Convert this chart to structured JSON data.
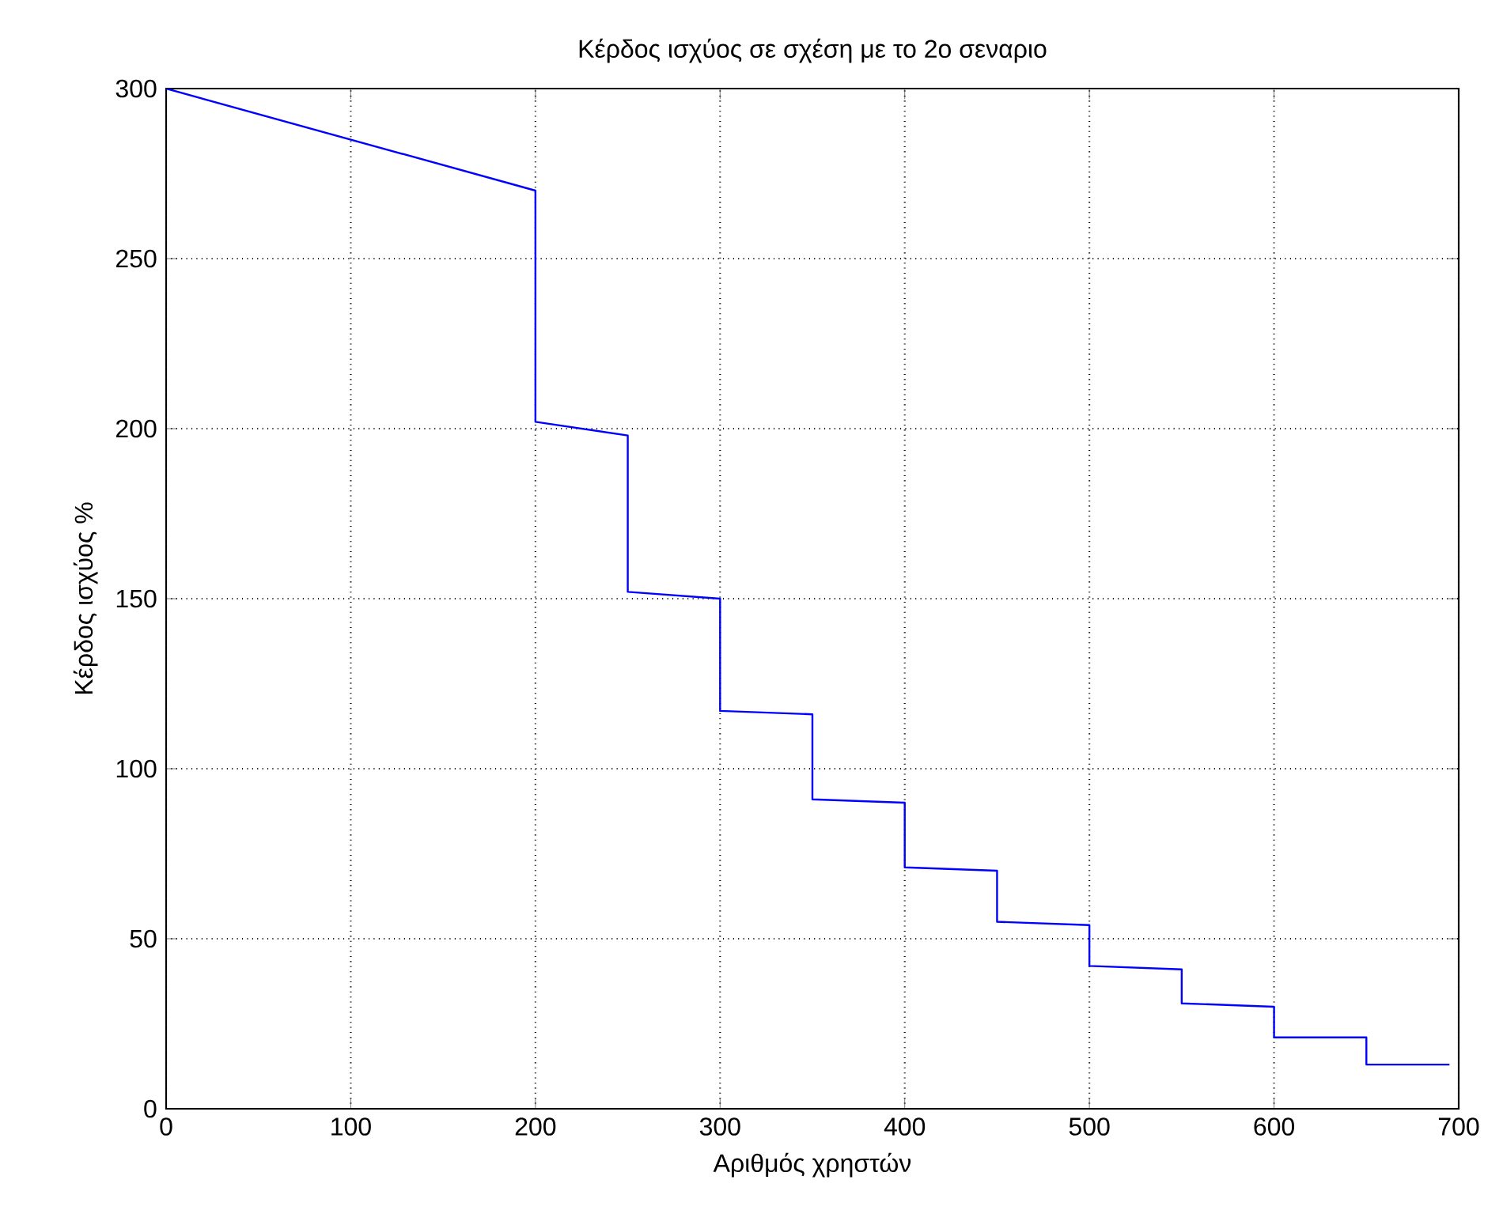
{
  "chart_data": {
    "type": "line",
    "title": "Κέρδος ισχύος σε σχέση με το 2ο σεναριο",
    "xlabel": "Αριθμός χρηστών",
    "ylabel": "Κέρδος ισχύος %",
    "series": [
      {
        "color": "#0000ff",
        "x": [
          0,
          200,
          200,
          250,
          250,
          300,
          300,
          350,
          350,
          400,
          400,
          450,
          450,
          500,
          500,
          550,
          550,
          600,
          600,
          650,
          650,
          695
        ],
        "values": [
          300,
          270,
          202,
          198,
          152,
          150,
          117,
          116,
          91,
          90,
          71,
          70,
          55,
          54,
          42,
          41,
          31,
          30,
          21,
          21,
          13,
          13
        ]
      }
    ],
    "xlim": [
      0,
      700
    ],
    "ylim": [
      0,
      300
    ],
    "xticks": [
      0,
      100,
      200,
      300,
      400,
      500,
      600,
      700
    ],
    "yticks": [
      0,
      50,
      100,
      150,
      200,
      250,
      300
    ],
    "grid": true,
    "marker": "none",
    "line_style": "solid"
  }
}
